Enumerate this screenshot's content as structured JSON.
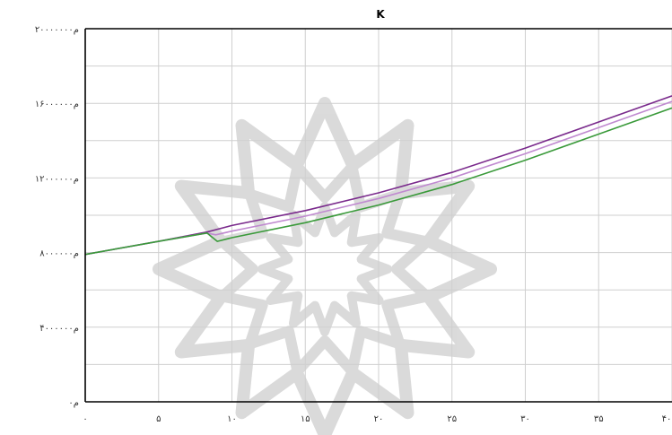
{
  "chart_data": {
    "type": "line",
    "title": "K",
    "xlabel": "",
    "ylabel": "",
    "xlim": [
      0,
      40
    ],
    "ylim": [
      0,
      20
    ],
    "grid": true,
    "x_ticks": [
      0,
      5,
      10,
      15,
      20,
      25,
      30,
      35,
      40
    ],
    "x_tick_labels": [
      "۰",
      "۵",
      "۱۰",
      "۱۵",
      "۲۰",
      "۲۵",
      "۳۰",
      "۳۵",
      "۴۰"
    ],
    "y_ticks": [
      0,
      4,
      8,
      12,
      16,
      20
    ],
    "y_tick_labels": [
      "۰م",
      "۴م۰۰۰۰۰۰",
      "۸م۰۰۰۰۰۰",
      "۱۲م۰۰۰۰۰۰",
      "۱۶م۰۰۰۰۰۰",
      "۲۰م۰۰۰۰۰۰"
    ],
    "series": [
      {
        "color": "#7a2a8c",
        "x": [
          0,
          5,
          8.3,
          10,
          15,
          20,
          25,
          30,
          35,
          40
        ],
        "y": [
          7.9,
          8.6,
          9.1,
          9.45,
          10.25,
          11.2,
          12.3,
          13.6,
          15.0,
          16.4
        ]
      },
      {
        "color": "#c08ad0",
        "x": [
          0,
          5,
          8.3,
          8.9,
          10,
          15,
          20,
          25,
          30,
          35,
          40
        ],
        "y": [
          7.9,
          8.6,
          9.05,
          8.95,
          9.15,
          9.95,
          10.9,
          12.0,
          13.3,
          14.7,
          16.1
        ]
      },
      {
        "color": "#3a9a3a",
        "x": [
          0,
          5,
          8.3,
          9.0,
          10,
          15,
          20,
          25,
          30,
          35,
          40
        ],
        "y": [
          7.9,
          8.6,
          9.05,
          8.6,
          8.8,
          9.6,
          10.55,
          11.65,
          12.95,
          14.35,
          15.75
        ]
      }
    ]
  },
  "watermark": {
    "name": "rosette-watermark",
    "color": "#bdbdbd"
  }
}
